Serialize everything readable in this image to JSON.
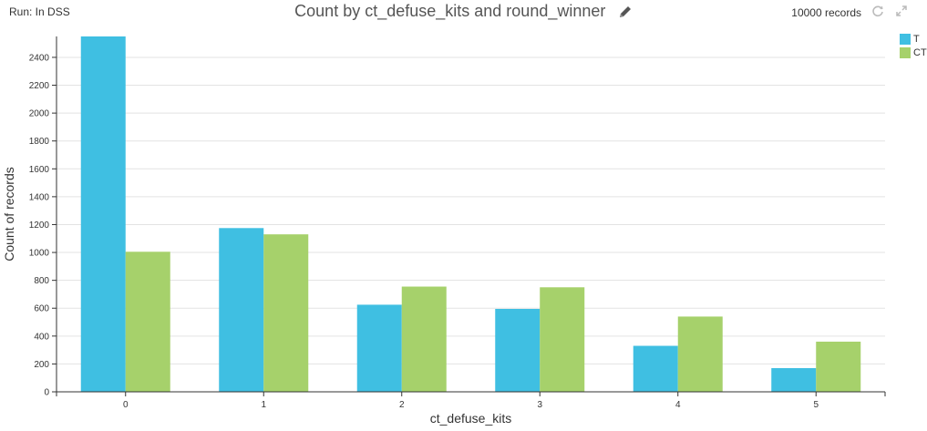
{
  "header": {
    "run_label": "Run: In DSS",
    "title": "Count by ct_defuse_kits and round_winner",
    "records_label": "10000 records"
  },
  "icons": {
    "edit": "pencil-icon",
    "refresh": "refresh-icon",
    "expand": "expand-icon"
  },
  "colors": {
    "T": "#3fbfe2",
    "CT": "#a6d16b",
    "grid": "#e3e3e3",
    "axis": "#333333"
  },
  "chart_data": {
    "type": "bar",
    "title": "Count by ct_defuse_kits and round_winner",
    "xlabel": "ct_defuse_kits",
    "ylabel": "Count of records",
    "categories": [
      "0",
      "1",
      "2",
      "3",
      "4",
      "5"
    ],
    "series": [
      {
        "name": "T",
        "values": [
          2550,
          1175,
          625,
          595,
          330,
          170
        ]
      },
      {
        "name": "CT",
        "values": [
          1005,
          1130,
          755,
          750,
          540,
          360
        ]
      }
    ],
    "ylim": [
      0,
      2550
    ],
    "yticks": [
      0,
      200,
      400,
      600,
      800,
      1000,
      1200,
      1400,
      1600,
      1800,
      2000,
      2200,
      2400
    ],
    "grid": true,
    "legend_position": "top-right"
  }
}
